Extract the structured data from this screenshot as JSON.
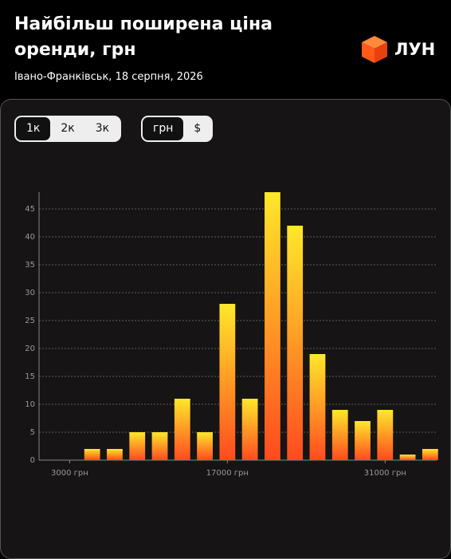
{
  "header": {
    "title_lines": [
      "Найбільш поширена ціна",
      "оренди, грн"
    ],
    "subtitle": "Івано-Франківськ, 18 серпня, 2026",
    "logo": "ЛУН"
  },
  "controls": {
    "rooms": [
      "1к",
      "2к",
      "3к"
    ],
    "currency": [
      "грн",
      "$"
    ]
  },
  "chart_data": {
    "type": "bar",
    "x": [
      3000,
      5000,
      7000,
      9000,
      11000,
      13000,
      15000,
      17000,
      19000,
      21000,
      23000,
      25000,
      27000,
      29000,
      31000,
      33000,
      35000
    ],
    "values": [
      0,
      2,
      2,
      5,
      5,
      11,
      5,
      28,
      11,
      48,
      42,
      19,
      9,
      7,
      9,
      1,
      2
    ],
    "gradient": [
      "#ffe82a",
      "#ff4a1f"
    ],
    "xlim": [
      0,
      36000
    ],
    "ylim": [
      0,
      48
    ],
    "xticks": [
      {
        "value": 3000,
        "label": "3000 грн"
      },
      {
        "value": 17000,
        "label": "17000 грн"
      },
      {
        "value": 31000,
        "label": "31000 грн"
      }
    ],
    "yticks": [
      0,
      5,
      10,
      15,
      20,
      25,
      30,
      35,
      40,
      45
    ],
    "grid": true
  }
}
